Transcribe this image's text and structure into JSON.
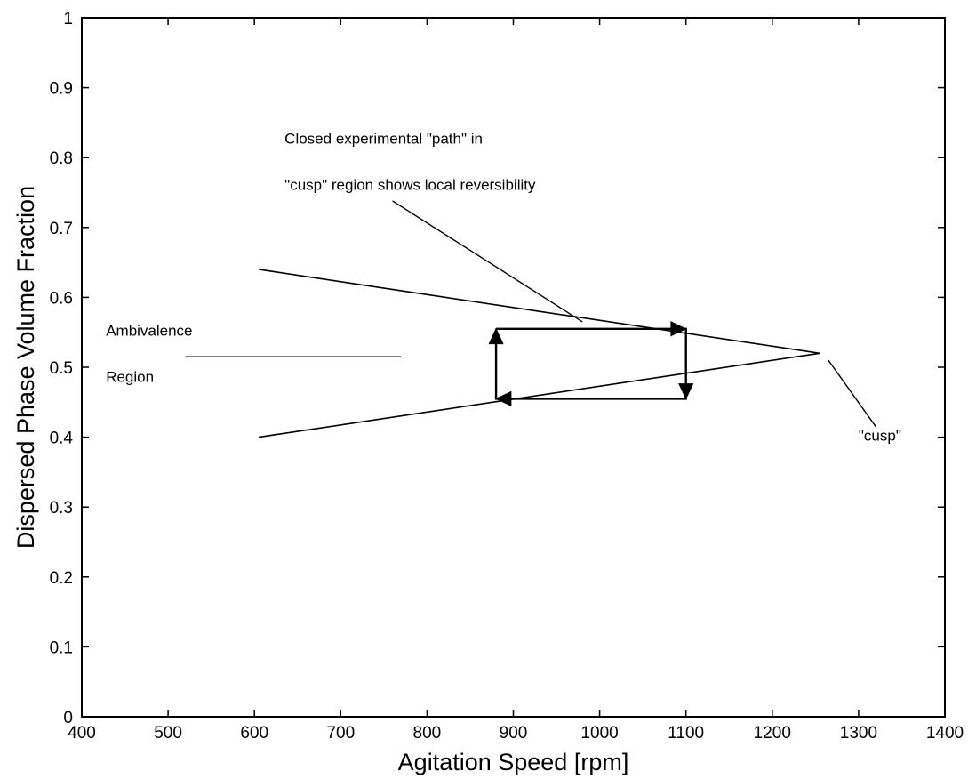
{
  "chart_data": {
    "type": "line",
    "title": "",
    "xlabel": "Agitation Speed [rpm]",
    "ylabel": "Dispersed Phase Volume Fraction",
    "xlim": [
      400,
      1400
    ],
    "ylim": [
      0,
      1
    ],
    "x_ticks": [
      400,
      500,
      600,
      700,
      800,
      900,
      1000,
      1100,
      1200,
      1300,
      1400
    ],
    "x_tick_labels": [
      "400",
      "500",
      "600",
      "700",
      "800",
      "900",
      "1000",
      "1100",
      "1200",
      "1300",
      "1400"
    ],
    "y_ticks": [
      0,
      0.1,
      0.2,
      0.3,
      0.4,
      0.5,
      0.6,
      0.7,
      0.8,
      0.9,
      1
    ],
    "y_tick_labels": [
      "0",
      "0.1",
      "0.2",
      "0.3",
      "0.4",
      "0.5",
      "0.6",
      "0.7",
      "0.8",
      "0.9",
      "1"
    ],
    "grid": false,
    "legend": "none",
    "series": [
      {
        "x": [
          605,
          1255
        ],
        "y": [
          0.64,
          0.52
        ]
      },
      {
        "x": [
          605,
          1255
        ],
        "y": [
          0.4,
          0.52
        ]
      }
    ],
    "path": {
      "points": [
        {
          "x": 880,
          "y": 0.555
        },
        {
          "x": 1100,
          "y": 0.555
        },
        {
          "x": 1100,
          "y": 0.455
        },
        {
          "x": 880,
          "y": 0.455
        },
        {
          "x": 880,
          "y": 0.555
        }
      ],
      "arrowheads": [
        {
          "x": 1100,
          "y": 0.555,
          "dir": "right"
        },
        {
          "x": 1100,
          "y": 0.455,
          "dir": "down"
        },
        {
          "x": 880,
          "y": 0.455,
          "dir": "left"
        },
        {
          "x": 880,
          "y": 0.555,
          "dir": "up"
        }
      ]
    },
    "annotations": [
      {
        "lines": [
          "Closed experimental \"path\" in",
          "\"cusp\" region shows local reversibility"
        ],
        "anchor": {
          "x": 635,
          "y": 0.82
        },
        "pointer": [
          {
            "x": 760,
            "y": 0.738
          },
          {
            "x": 980,
            "y": 0.565
          }
        ]
      },
      {
        "lines": [
          "Ambivalence",
          "Region"
        ],
        "anchor": {
          "x": 428,
          "y": 0.545
        },
        "pointer": [
          {
            "x": 520,
            "y": 0.515
          },
          {
            "x": 770,
            "y": 0.515
          }
        ]
      },
      {
        "lines": [
          "\"cusp\""
        ],
        "anchor": {
          "x": 1300,
          "y": 0.395
        },
        "pointer": [
          {
            "x": 1265,
            "y": 0.51
          },
          {
            "x": 1320,
            "y": 0.415
          }
        ]
      }
    ]
  }
}
